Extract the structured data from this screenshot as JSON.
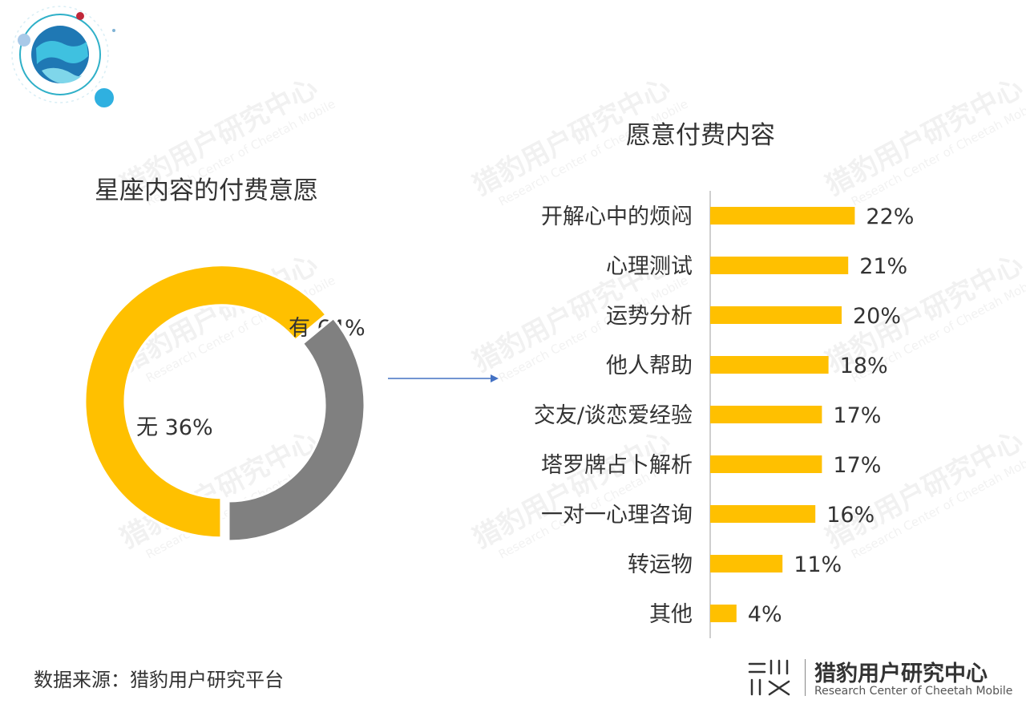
{
  "watermark": {
    "cn": "猎豹用户研究中心",
    "en": "Research Center of Cheetah Mobile"
  },
  "left_title": "星座内容的付费意愿",
  "right_title": "愿意付费内容",
  "source_note": "数据来源：猎豹用户研究平台",
  "brand": {
    "cn": "猎豹用户研究中心",
    "en": "Research Center of Cheetah Mobile"
  },
  "colors": {
    "yes": "#FFC000",
    "no": "#808080",
    "bar": "#FFC000",
    "axis": "#BFBFBF",
    "arrow": "#4472C4"
  },
  "chart_data": [
    {
      "type": "pie",
      "title": "星座内容的付费意愿",
      "slices": [
        {
          "label": "有",
          "value": 64,
          "display": "有 64%",
          "color": "#FFC000",
          "exploded": true
        },
        {
          "label": "无",
          "value": 36,
          "display": "无 36%",
          "color": "#808080",
          "exploded": false
        }
      ],
      "donut": true
    },
    {
      "type": "bar",
      "orientation": "horizontal",
      "title": "愿意付费内容",
      "categories": [
        "开解心中的烦闷",
        "心理测试",
        "运势分析",
        "他人帮助",
        "交友/谈恋爱经验",
        "塔罗牌占卜解析",
        "一对一心理咨询",
        "转运物",
        "其他"
      ],
      "values": [
        22,
        21,
        20,
        18,
        17,
        17,
        16,
        11,
        4
      ],
      "labels": [
        "22%",
        "21%",
        "20%",
        "18%",
        "17%",
        "17%",
        "16%",
        "11%",
        "4%"
      ],
      "unit": "%",
      "xlim": [
        0,
        25
      ],
      "grid": false
    }
  ]
}
